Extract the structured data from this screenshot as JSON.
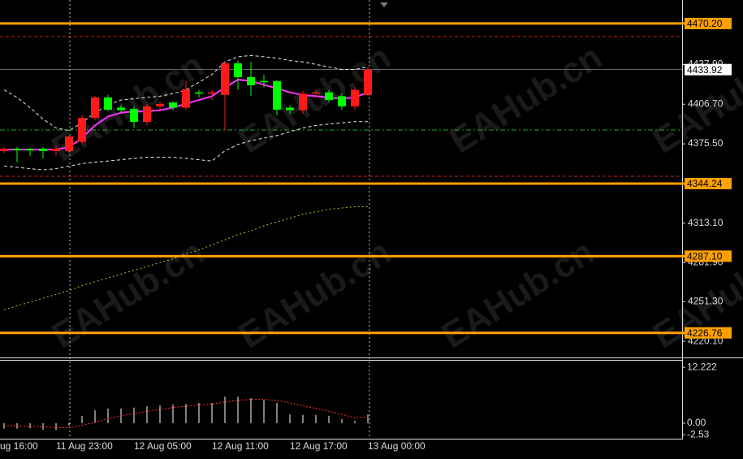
{
  "chart_data": [
    {
      "type": "candlestick",
      "watermark": "EAHub.cn",
      "clipped_time_label": "ug 16:00",
      "categories": [
        null,
        null,
        null,
        null,
        "11 Aug 23:00",
        null,
        null,
        null,
        null,
        null,
        "12 Aug 05:00",
        null,
        null,
        null,
        null,
        null,
        "12 Aug 11:00",
        null,
        null,
        null,
        null,
        null,
        "12 Aug 17:00",
        null,
        null,
        null,
        null,
        null,
        "13 Aug 00:00"
      ],
      "open": [
        4369.8,
        4371.7,
        4371.5,
        4371.7,
        4369.8,
        4369.8,
        4377,
        4396,
        4412,
        4404,
        4403,
        4392.8,
        4405,
        4408,
        4404,
        4416,
        4415,
        4414,
        4438.9,
        4428,
        4425,
        4424.8,
        4404,
        4402,
        4415,
        4416,
        4413,
        4405,
        4414
      ],
      "high": [
        4373,
        4373,
        4372,
        4373,
        4374,
        4382,
        4398,
        4413,
        4414,
        4406,
        4405,
        4407,
        4409,
        4409,
        4425,
        4418,
        4418,
        4440,
        4441,
        4440,
        4430,
        4426,
        4406,
        4417,
        4418,
        4418,
        4415,
        4420,
        4436
      ],
      "low": [
        4368,
        4361,
        4366,
        4364,
        4366,
        4368,
        4375,
        4394,
        4401,
        4400,
        4388,
        4390,
        4402,
        4402,
        4402,
        4412,
        4410,
        4386,
        4418,
        4413,
        4420,
        4398,
        4399,
        4399,
        4412,
        4408,
        4402,
        4402,
        4413
      ],
      "close": [
        4371.7,
        4370.5,
        4370.3,
        4369.8,
        4371.7,
        4381.3,
        4396,
        4412,
        4402.4,
        4402,
        4392.8,
        4405,
        4407,
        4404,
        4418.4,
        4415,
        4416,
        4438.9,
        4428,
        4421.6,
        4424,
        4402.4,
        4402,
        4415,
        4416,
        4410,
        4405,
        4418,
        4434
      ],
      "up_color": "#ff1a1a",
      "down_color": "#00ff00",
      "lines": [
        {
          "color": "#ff33ff",
          "style": "solid",
          "values": [
            4371,
            4371,
            4371,
            4371,
            4371,
            4373,
            4380,
            4390,
            4397,
            4400,
            4401,
            4401,
            4402,
            4404,
            4407,
            4410,
            4413,
            4420,
            4426,
            4425,
            4422,
            4419,
            4416,
            4414,
            4413,
            4412,
            4411,
            4412,
            4416
          ]
        },
        {
          "color": "#e8e8e8",
          "style": "dash",
          "values": [
            4418,
            4412,
            4404,
            4395,
            4388,
            4386,
            4392,
            4400,
            4406,
            4410,
            4411,
            4412,
            4413,
            4415,
            4418,
            4424,
            4430,
            4440,
            4444,
            4445,
            4444,
            4443,
            4441,
            4440,
            4438,
            4436,
            4434,
            4434,
            4436
          ]
        },
        {
          "color": "#e8e8e8",
          "style": "dash",
          "values": [
            4358,
            4357,
            4356,
            4355,
            4356,
            4358,
            4360,
            4361,
            4362,
            4363,
            4364,
            4365,
            4365,
            4365,
            4364,
            4363,
            4362,
            4370,
            4375,
            4378,
            4380,
            4382,
            4385,
            4388,
            4390,
            4391,
            4392,
            4393,
            4393
          ]
        },
        {
          "color": "#9acd32",
          "style": "dot",
          "values": [
            4245,
            4248,
            4251,
            4254,
            4257,
            4260,
            4264,
            4267,
            4270,
            4273,
            4276,
            4279,
            4282,
            4285,
            4289,
            4292,
            4296,
            4300,
            4304,
            4307,
            4311,
            4314,
            4317,
            4320,
            4322,
            4324,
            4325,
            4326,
            4326
          ]
        }
      ],
      "ylim": [
        4207.4,
        4488.7
      ],
      "yticks": [
        {
          "value": 4437.9,
          "label": "4437.90"
        },
        {
          "value": 4406.7,
          "label": "4406.70"
        },
        {
          "value": 4375.5,
          "label": "4375.50"
        },
        {
          "value": 4313.1,
          "label": "4313.10"
        },
        {
          "value": 4281.9,
          "label": "4281.90"
        },
        {
          "value": 4251.3,
          "label": "4251.30"
        },
        {
          "value": 4220.1,
          "label": "4220.10"
        }
      ],
      "price_levels": [
        {
          "value": 4470.2,
          "label": "4470.20"
        },
        {
          "value": 4344.24,
          "label": "4344.24"
        },
        {
          "value": 4287.1,
          "label": "4287.10"
        },
        {
          "value": 4226.76,
          "label": "4226.76"
        }
      ],
      "level_color": "#ffa000",
      "marker_lines": [
        {
          "value": 4460.0,
          "color": "#cc2020",
          "style": "dash"
        },
        {
          "value": 4350.0,
          "color": "#cc2020",
          "style": "dash"
        },
        {
          "value": 4386.4,
          "color": "#22aa22",
          "style": "dashdot"
        }
      ],
      "current_price": {
        "value": 4433.92,
        "label": "4433.92"
      },
      "current_line_color": "#a0a0a0"
    },
    {
      "type": "bar",
      "color": "#ffffff",
      "values": [
        -1.2,
        -1.2,
        -1.1,
        -1.4,
        -1.5,
        -0.5,
        1.6,
        2.8,
        3.2,
        3.2,
        3.4,
        3.7,
        3.9,
        4.1,
        4.2,
        4.4,
        4.4,
        5.8,
        5.8,
        5.5,
        5.1,
        4.4,
        1.9,
        1.8,
        1.8,
        1.6,
        0.9,
        0.5,
        1.9
      ],
      "signal": {
        "color": "#ff3030",
        "values": [
          -0.5,
          -0.6,
          -0.7,
          -0.8,
          -1.0,
          -1.0,
          -0.5,
          0.2,
          1.0,
          1.6,
          2.1,
          2.6,
          3.0,
          3.4,
          3.7,
          4.0,
          4.2,
          4.6,
          5.0,
          5.2,
          5.2,
          5.0,
          4.4,
          3.8,
          3.2,
          2.6,
          1.9,
          1.2,
          1.4
        ]
      },
      "ylim": [
        -3.4,
        14.2
      ],
      "yticks": [
        12.222,
        {
          "value": 0,
          "label": "0.00"
        },
        -2.53
      ]
    }
  ]
}
